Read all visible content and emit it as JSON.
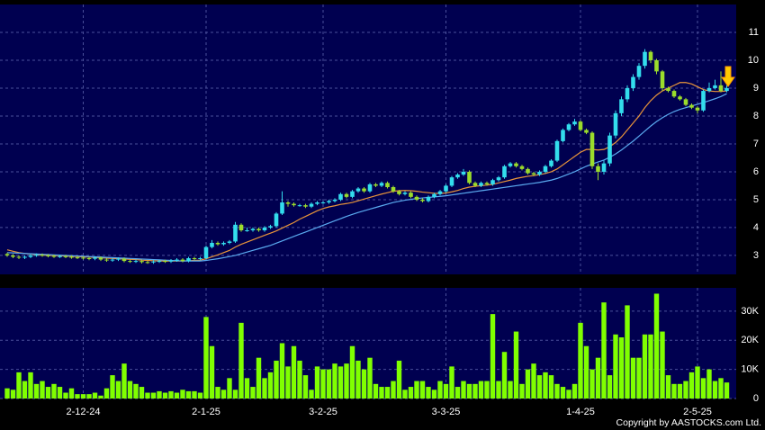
{
  "chart_data": [
    {
      "type": "candlestick",
      "categories": [
        null,
        null,
        null,
        null,
        null,
        null,
        null,
        null,
        null,
        null,
        null,
        null,
        null,
        "2-12-24",
        null,
        null,
        null,
        null,
        null,
        null,
        null,
        null,
        null,
        null,
        null,
        null,
        null,
        null,
        null,
        null,
        null,
        null,
        null,
        null,
        "2-1-25",
        null,
        null,
        null,
        null,
        null,
        null,
        null,
        null,
        null,
        null,
        null,
        null,
        null,
        null,
        null,
        null,
        null,
        null,
        null,
        "3-2-25",
        null,
        null,
        null,
        null,
        null,
        null,
        null,
        null,
        null,
        null,
        null,
        null,
        null,
        null,
        null,
        null,
        null,
        null,
        null,
        null,
        "3-3-25",
        null,
        null,
        null,
        null,
        null,
        null,
        null,
        null,
        null,
        null,
        null,
        null,
        null,
        null,
        null,
        null,
        null,
        null,
        null,
        null,
        null,
        null,
        "1-4-25",
        null,
        null,
        null,
        null,
        null,
        null,
        null,
        null,
        null,
        null,
        null,
        null,
        null,
        null,
        null,
        null,
        null,
        null,
        null,
        "2-5-25",
        null,
        null,
        null,
        null,
        null
      ],
      "open": [
        3.05,
        3.0,
        2.95,
        2.92,
        2.95,
        3.0,
        3.02,
        3.0,
        2.98,
        2.96,
        2.97,
        2.95,
        2.93,
        2.92,
        2.9,
        2.88,
        2.92,
        2.85,
        2.82,
        2.85,
        2.88,
        2.8,
        2.78,
        2.8,
        2.76,
        2.75,
        2.78,
        2.8,
        2.78,
        2.82,
        2.85,
        2.8,
        2.9,
        2.88,
        2.9,
        3.3,
        3.45,
        3.4,
        3.45,
        3.5,
        4.1,
        3.9,
        3.9,
        3.95,
        3.9,
        4.0,
        4.05,
        4.5,
        4.9,
        4.85,
        4.8,
        4.8,
        4.75,
        4.85,
        4.9,
        4.9,
        4.95,
        5.0,
        5.2,
        5.1,
        5.3,
        5.4,
        5.3,
        5.55,
        5.5,
        5.6,
        5.45,
        5.3,
        5.2,
        5.25,
        5.1,
        5.0,
        4.95,
        5.1,
        5.2,
        5.3,
        5.5,
        5.8,
        5.9,
        6.0,
        5.6,
        5.5,
        5.6,
        5.55,
        5.7,
        5.8,
        6.2,
        6.3,
        6.2,
        6.1,
        5.95,
        5.9,
        6.0,
        6.2,
        6.4,
        7.1,
        7.5,
        7.7,
        7.8,
        7.5,
        7.4,
        6.2,
        6.0,
        6.3,
        7.3,
        8.1,
        8.6,
        9.0,
        9.4,
        9.8,
        10.3,
        10.0,
        9.6,
        9.0,
        8.9,
        8.7,
        8.6,
        8.4,
        8.3,
        8.2,
        8.9,
        9.0,
        9.1,
        8.9
      ],
      "high": [
        3.1,
        3.05,
        3.0,
        3.0,
        3.05,
        3.07,
        3.07,
        3.05,
        3.03,
        3.02,
        3.02,
        3.0,
        2.98,
        2.97,
        2.95,
        2.97,
        2.97,
        2.9,
        2.9,
        2.93,
        2.93,
        2.85,
        2.85,
        2.85,
        2.81,
        2.83,
        2.85,
        2.85,
        2.87,
        2.9,
        2.9,
        2.95,
        2.95,
        2.95,
        3.35,
        3.55,
        3.5,
        3.5,
        3.55,
        4.2,
        4.15,
        4.0,
        4.0,
        4.0,
        4.05,
        4.1,
        4.55,
        5.3,
        4.95,
        4.9,
        4.85,
        4.85,
        4.9,
        4.95,
        4.95,
        5.0,
        5.05,
        5.25,
        5.25,
        5.35,
        5.45,
        5.45,
        5.6,
        5.6,
        5.65,
        5.65,
        5.5,
        5.35,
        5.3,
        5.3,
        5.15,
        5.05,
        5.15,
        5.25,
        5.35,
        5.55,
        5.85,
        5.95,
        6.1,
        6.05,
        5.65,
        5.65,
        5.65,
        5.75,
        5.85,
        6.25,
        6.35,
        6.35,
        6.25,
        6.15,
        6.0,
        6.05,
        6.25,
        6.45,
        7.15,
        7.55,
        7.75,
        7.9,
        7.85,
        7.55,
        7.45,
        6.3,
        6.4,
        7.4,
        8.2,
        8.7,
        9.1,
        9.5,
        9.9,
        10.4,
        10.35,
        10.05,
        9.65,
        9.05,
        8.95,
        8.75,
        8.65,
        8.45,
        8.35,
        8.95,
        9.2,
        9.3,
        9.6,
        9.1
      ],
      "low": [
        2.95,
        2.9,
        2.87,
        2.87,
        2.9,
        2.95,
        2.95,
        2.93,
        2.91,
        2.91,
        2.9,
        2.88,
        2.87,
        2.85,
        2.83,
        2.83,
        2.8,
        2.77,
        2.77,
        2.8,
        2.75,
        2.73,
        2.73,
        2.71,
        2.7,
        2.7,
        2.73,
        2.73,
        2.73,
        2.77,
        2.75,
        2.75,
        2.83,
        2.83,
        2.85,
        3.25,
        3.35,
        3.35,
        3.4,
        3.45,
        3.85,
        3.85,
        3.85,
        3.85,
        3.85,
        3.95,
        4.0,
        4.45,
        4.75,
        4.75,
        4.75,
        4.7,
        4.7,
        4.8,
        4.85,
        4.85,
        4.9,
        4.95,
        5.05,
        5.05,
        5.25,
        5.25,
        5.25,
        5.45,
        5.45,
        5.4,
        5.25,
        5.15,
        5.15,
        5.05,
        4.95,
        4.9,
        4.9,
        5.05,
        5.15,
        5.25,
        5.45,
        5.75,
        5.85,
        5.55,
        5.45,
        5.45,
        5.5,
        5.5,
        5.65,
        5.75,
        6.15,
        6.15,
        6.05,
        5.9,
        5.85,
        5.85,
        5.95,
        6.15,
        6.35,
        7.05,
        7.45,
        7.65,
        7.45,
        7.35,
        6.1,
        5.7,
        5.9,
        6.2,
        7.2,
        8.0,
        8.5,
        8.9,
        9.3,
        9.7,
        9.9,
        9.5,
        8.9,
        8.85,
        8.65,
        8.55,
        8.35,
        8.25,
        8.1,
        8.15,
        8.85,
        8.95,
        8.85,
        8.85
      ],
      "close": [
        3.0,
        2.95,
        2.92,
        2.95,
        3.0,
        3.02,
        3.0,
        2.98,
        2.96,
        2.97,
        2.95,
        2.93,
        2.92,
        2.9,
        2.88,
        2.92,
        2.85,
        2.82,
        2.85,
        2.88,
        2.8,
        2.78,
        2.8,
        2.76,
        2.75,
        2.78,
        2.8,
        2.78,
        2.82,
        2.85,
        2.8,
        2.9,
        2.88,
        2.9,
        3.3,
        3.45,
        3.4,
        3.45,
        3.5,
        4.1,
        3.9,
        3.9,
        3.95,
        3.9,
        4.0,
        4.05,
        4.5,
        4.9,
        4.85,
        4.8,
        4.8,
        4.75,
        4.85,
        4.9,
        4.9,
        4.95,
        5.0,
        5.2,
        5.1,
        5.3,
        5.4,
        5.3,
        5.55,
        5.5,
        5.6,
        5.45,
        5.3,
        5.2,
        5.25,
        5.1,
        5.0,
        4.95,
        5.1,
        5.2,
        5.3,
        5.5,
        5.8,
        5.9,
        6.0,
        5.6,
        5.5,
        5.6,
        5.55,
        5.7,
        5.8,
        6.2,
        6.3,
        6.2,
        6.1,
        5.95,
        5.9,
        6.0,
        6.2,
        6.4,
        7.1,
        7.5,
        7.7,
        7.8,
        7.5,
        7.4,
        6.2,
        6.0,
        6.3,
        7.3,
        8.1,
        8.6,
        9.0,
        9.4,
        9.8,
        10.3,
        10.0,
        9.6,
        9.0,
        8.9,
        8.7,
        8.6,
        8.4,
        8.3,
        8.2,
        8.9,
        9.0,
        9.1,
        8.9,
        9.0
      ],
      "lines": [
        {
          "color": "#e8943a",
          "values": [
            3.2,
            3.15,
            3.1,
            3.07,
            3.05,
            3.03,
            3.02,
            3.0,
            3.0,
            2.99,
            2.98,
            2.97,
            2.96,
            2.95,
            2.94,
            2.93,
            2.92,
            2.9,
            2.89,
            2.88,
            2.87,
            2.86,
            2.85,
            2.83,
            2.82,
            2.81,
            2.8,
            2.8,
            2.8,
            2.8,
            2.8,
            2.81,
            2.82,
            2.83,
            2.88,
            2.95,
            3.02,
            3.1,
            3.18,
            3.3,
            3.4,
            3.48,
            3.56,
            3.64,
            3.72,
            3.8,
            3.88,
            3.98,
            4.08,
            4.18,
            4.3,
            4.4,
            4.5,
            4.6,
            4.68,
            4.74,
            4.78,
            4.83,
            4.86,
            4.9,
            4.96,
            5.02,
            5.08,
            5.14,
            5.2,
            5.25,
            5.3,
            5.32,
            5.33,
            5.32,
            5.3,
            5.27,
            5.25,
            5.23,
            5.22,
            5.24,
            5.28,
            5.33,
            5.4,
            5.45,
            5.48,
            5.5,
            5.52,
            5.55,
            5.6,
            5.65,
            5.7,
            5.76,
            5.8,
            5.84,
            5.86,
            5.9,
            5.94,
            6.0,
            6.1,
            6.25,
            6.4,
            6.55,
            6.7,
            6.8,
            6.8,
            6.78,
            6.8,
            6.9,
            7.05,
            7.25,
            7.5,
            7.75,
            8.0,
            8.3,
            8.55,
            8.75,
            8.9,
            9.0,
            9.1,
            9.2,
            9.2,
            9.15,
            9.05,
            8.95,
            8.9,
            8.88,
            8.88,
            8.9
          ]
        },
        {
          "color": "#5aaaf0",
          "values": [
            3.1,
            3.09,
            3.08,
            3.07,
            3.06,
            3.05,
            3.04,
            3.03,
            3.02,
            3.01,
            3.0,
            2.99,
            2.98,
            2.97,
            2.96,
            2.95,
            2.94,
            2.93,
            2.92,
            2.91,
            2.9,
            2.89,
            2.88,
            2.87,
            2.86,
            2.85,
            2.84,
            2.83,
            2.82,
            2.81,
            2.8,
            2.8,
            2.8,
            2.8,
            2.82,
            2.85,
            2.88,
            2.92,
            2.96,
            3.0,
            3.06,
            3.12,
            3.18,
            3.24,
            3.3,
            3.36,
            3.44,
            3.52,
            3.6,
            3.68,
            3.76,
            3.84,
            3.92,
            4.0,
            4.08,
            4.16,
            4.24,
            4.32,
            4.4,
            4.47,
            4.54,
            4.6,
            4.66,
            4.72,
            4.78,
            4.84,
            4.9,
            4.94,
            4.98,
            5.01,
            5.04,
            5.06,
            5.08,
            5.1,
            5.12,
            5.14,
            5.17,
            5.2,
            5.23,
            5.26,
            5.29,
            5.32,
            5.35,
            5.38,
            5.41,
            5.44,
            5.47,
            5.5,
            5.53,
            5.56,
            5.59,
            5.62,
            5.66,
            5.7,
            5.76,
            5.84,
            5.92,
            6.0,
            6.1,
            6.2,
            6.28,
            6.35,
            6.42,
            6.52,
            6.64,
            6.78,
            6.94,
            7.1,
            7.28,
            7.46,
            7.64,
            7.8,
            7.94,
            8.06,
            8.16,
            8.24,
            8.3,
            8.36,
            8.42,
            8.48,
            8.55,
            8.62,
            8.7,
            8.8
          ]
        }
      ],
      "up_color": "#33dded",
      "down_color": "#9bdc2c",
      "ylim": [
        2.32,
        12.0
      ],
      "yticks": [
        3,
        4,
        5,
        6,
        7,
        8,
        9,
        10,
        11
      ],
      "grid": true
    },
    {
      "type": "bar",
      "values": [
        3500,
        3000,
        9000,
        6000,
        9000,
        5000,
        6000,
        4000,
        5000,
        4000,
        2000,
        3500,
        1500,
        1500,
        1500,
        2000,
        1000,
        3500,
        8000,
        6000,
        12000,
        6000,
        5000,
        4000,
        2000,
        2000,
        2500,
        2000,
        2500,
        2000,
        3000,
        2500,
        2500,
        2000,
        28000,
        18000,
        4000,
        3000,
        7000,
        3000,
        26000,
        7000,
        4000,
        14000,
        7000,
        9000,
        13000,
        19000,
        11000,
        18000,
        13000,
        8000,
        3000,
        11000,
        10000,
        10000,
        12000,
        11000,
        12000,
        18000,
        13000,
        10000,
        14000,
        5000,
        4000,
        4000,
        6000,
        13000,
        3000,
        4000,
        6000,
        6000,
        4000,
        3000,
        6000,
        5000,
        11000,
        4000,
        6000,
        5000,
        5000,
        6000,
        6000,
        29000,
        6000,
        16000,
        6000,
        23000,
        5000,
        10000,
        12000,
        8000,
        9000,
        8000,
        5000,
        4000,
        3000,
        5000,
        26000,
        18000,
        10000,
        14000,
        33000,
        8000,
        22000,
        21000,
        32000,
        14000,
        14000,
        22000,
        22000,
        36000,
        23000,
        8000,
        5000,
        5000,
        6000,
        9000,
        11000,
        7000,
        10000,
        6000,
        7000,
        5500
      ],
      "color": "#80ff00",
      "ylim": [
        0,
        38000
      ],
      "yticks": [
        0,
        {
          "value": 10000,
          "label": "10K"
        },
        {
          "value": 20000,
          "label": "20K"
        },
        {
          "value": 30000,
          "label": "30K"
        }
      ],
      "grid": true
    }
  ],
  "copyright": "Copyright by AASTOCKS.com Ltd."
}
